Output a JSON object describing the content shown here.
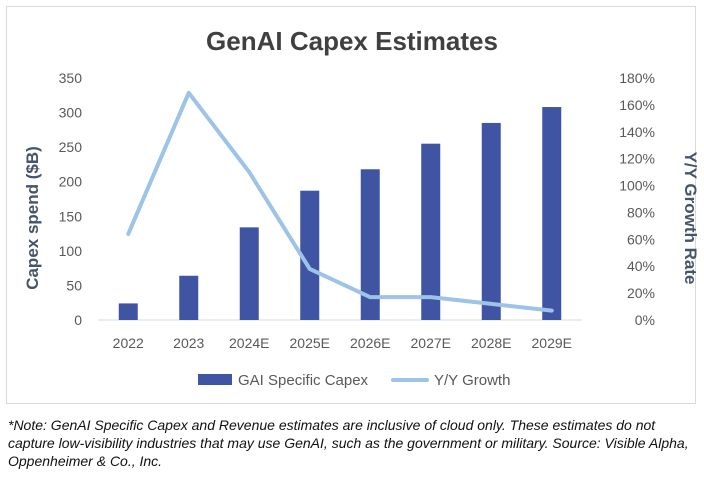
{
  "chart_data": {
    "type": "bar",
    "title": "GenAI Capex Estimates",
    "categories": [
      "2022",
      "2023",
      "2024E",
      "2025E",
      "2026E",
      "2027E",
      "2028E",
      "2029E"
    ],
    "series": [
      {
        "name": "GAI Specific Capex",
        "type": "bar",
        "axis": "left",
        "color": "#3f55a4",
        "values": [
          24,
          64,
          134,
          187,
          218,
          255,
          285,
          308
        ]
      },
      {
        "name": "Y/Y Growth",
        "type": "line",
        "axis": "right",
        "color": "#9dc3e6",
        "values": [
          64,
          169,
          110,
          38,
          17,
          17,
          12,
          7
        ]
      }
    ],
    "ylabel": "Capex spend ($B)",
    "ylabel_right": "Y/Y Growth Rate",
    "ylim": [
      0,
      350
    ],
    "yticks": [
      "0",
      "50",
      "100",
      "150",
      "200",
      "250",
      "300",
      "350"
    ],
    "ylim_right": [
      0,
      180
    ],
    "yticks_right": [
      "0%",
      "20%",
      "40%",
      "60%",
      "80%",
      "100%",
      "120%",
      "140%",
      "160%",
      "180%"
    ],
    "legend_position": "bottom",
    "grid": false
  },
  "footnote": "*Note: GenAI Specific Capex and Revenue estimates are inclusive of cloud only. These estimates do not capture low-visibility industries that may use GenAI, such as the government or military. Source: Visible Alpha, Oppenheimer & Co., Inc."
}
